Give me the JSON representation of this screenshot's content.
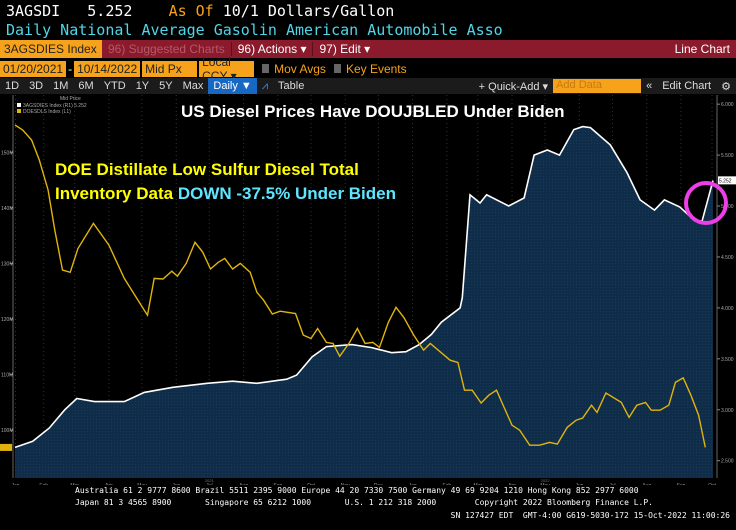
{
  "header": {
    "ticker": "3AGSDI",
    "last": "5.252",
    "as_of_label": "As Of",
    "as_of_rest": "10/1 Dollars/Gallon",
    "description": "Daily National Average Gasolin American Automobile Asso"
  },
  "toolbar": {
    "security": "3AGSDIES Index",
    "suggested": "96) Suggested Charts",
    "actions": "96) Actions ▾",
    "edit": "97) Edit ▾",
    "chart_type": "Line Chart"
  },
  "range": {
    "start": "01/20/2021",
    "dash": "-",
    "end": "10/14/2022",
    "price_type": "Mid Px",
    "currency": "Local CCY ▾",
    "mov_avgs": "Mov Avgs",
    "key_events": "Key Events"
  },
  "periods": [
    "1D",
    "3D",
    "1M",
    "6M",
    "YTD",
    "1Y",
    "5Y",
    "Max"
  ],
  "frequency": "Daily ▼",
  "table_label": "Table",
  "quick_add": "+ Quick-Add ▾",
  "add_data_placeholder": "Add Data",
  "collapse": "«",
  "edit_chart": "Edit Chart",
  "annotations": {
    "title": "US Diesel Prices Have DOUJBLED Under Biden",
    "line1": "DOE Distillate Low Sulfur Diesel Total",
    "line2a": "Inventory Data ",
    "line2b": "DOWN -37.5% Under Biden"
  },
  "footer": {
    "line1": "Australia 61 2 9777 8600 Brazil 5511 2395 9000 Europe 44 20 7330 7500 Germany 49 69 9204 1210 Hong Kong 852 2977 6000",
    "line2": "Japan 81 3 4565 8900       Singapore 65 6212 1000       U.S. 1 212 318 2000        Copyright 2022 Bloomberg Finance L.P.",
    "line3": "SN 127427 EDT  GMT-4:00 G619-5030-172 15-Oct-2022 11:00:26"
  },
  "colors": {
    "price": "#ffffff",
    "inventory": "#e0b40c",
    "area": "#0f2c48",
    "highlight": "#ee3ee8",
    "annotation_yellow": "#ffff00",
    "annotation_cyan": "#5fe6ff"
  },
  "chart_data": {
    "type": "line",
    "legend": {
      "title": "Mid Price",
      "entries": [
        "3AGSDIES Index (R1) 5.252",
        "DOESDLS Index (L1)"
      ]
    },
    "x_range": [
      "2021-01-20",
      "2022-10-14"
    ],
    "x_ticks": [
      "Jan",
      "Feb",
      "Mar",
      "Apr",
      "May",
      "Jun",
      "Jul",
      "Aug",
      "Sep",
      "Oct",
      "Nov",
      "Dec",
      "Jan",
      "Feb",
      "Mar",
      "Apr",
      "May",
      "Jun",
      "Jul",
      "Aug",
      "Sep",
      "Oct"
    ],
    "year_labels": [
      "2021",
      "2022"
    ],
    "right_axis": {
      "ylim": [
        2.33,
        6.09
      ],
      "ticks": [
        "2.500",
        "3.000",
        "3.500",
        "4.000",
        "4.500",
        "5.000",
        "5.500",
        "6.000"
      ],
      "last_tag": "5.252"
    },
    "left_axis": {
      "ylim": [
        91.4,
        160.3
      ],
      "ticks": [
        "100M",
        "110M",
        "120M",
        "130M",
        "140M",
        "150M"
      ]
    },
    "series": [
      {
        "name": "3AGSDIES Index",
        "axis": "right",
        "style": "area",
        "points": [
          [
            "2021-01-20",
            2.63
          ],
          [
            "2021-02-05",
            2.69
          ],
          [
            "2021-02-20",
            2.82
          ],
          [
            "2021-03-06",
            3.0
          ],
          [
            "2021-03-17",
            3.11
          ],
          [
            "2021-04-02",
            3.08
          ],
          [
            "2021-04-29",
            3.08
          ],
          [
            "2021-05-17",
            3.17
          ],
          [
            "2021-06-12",
            3.22
          ],
          [
            "2021-07-13",
            3.26
          ],
          [
            "2021-08-05",
            3.28
          ],
          [
            "2021-08-27",
            3.26
          ],
          [
            "2021-09-23",
            3.3
          ],
          [
            "2021-10-02",
            3.34
          ],
          [
            "2021-10-16",
            3.52
          ],
          [
            "2021-10-29",
            3.62
          ],
          [
            "2021-11-21",
            3.64
          ],
          [
            "2021-12-09",
            3.61
          ],
          [
            "2021-12-27",
            3.56
          ],
          [
            "2022-01-09",
            3.57
          ],
          [
            "2022-01-21",
            3.64
          ],
          [
            "2022-02-01",
            3.74
          ],
          [
            "2022-02-10",
            3.86
          ],
          [
            "2022-02-27",
            4.0
          ],
          [
            "2022-03-01",
            4.1
          ],
          [
            "2022-03-08",
            5.11
          ],
          [
            "2022-03-17",
            5.03
          ],
          [
            "2022-03-23",
            5.11
          ],
          [
            "2022-04-12",
            5.0
          ],
          [
            "2022-04-26",
            5.08
          ],
          [
            "2022-05-05",
            5.5
          ],
          [
            "2022-05-17",
            5.55
          ],
          [
            "2022-05-28",
            5.5
          ],
          [
            "2022-06-10",
            5.75
          ],
          [
            "2022-06-18",
            5.78
          ],
          [
            "2022-06-25",
            5.77
          ],
          [
            "2022-07-13",
            5.6
          ],
          [
            "2022-07-28",
            5.33
          ],
          [
            "2022-08-09",
            5.06
          ],
          [
            "2022-08-22",
            4.96
          ],
          [
            "2022-08-31",
            5.06
          ],
          [
            "2022-09-14",
            4.99
          ],
          [
            "2022-09-27",
            4.86
          ],
          [
            "2022-10-04",
            4.85
          ],
          [
            "2022-10-14",
            5.25
          ]
        ]
      },
      {
        "name": "DOESDLS Index",
        "axis": "left",
        "style": "line",
        "points": [
          [
            "2021-01-20",
            154.9
          ],
          [
            "2021-01-27",
            154.0
          ],
          [
            "2021-02-04",
            152.2
          ],
          [
            "2021-02-11",
            148.6
          ],
          [
            "2021-02-19",
            143.2
          ],
          [
            "2021-02-25",
            136.0
          ],
          [
            "2021-03-04",
            128.8
          ],
          [
            "2021-03-11",
            128.4
          ],
          [
            "2021-03-18",
            132.7
          ],
          [
            "2021-04-01",
            137.2
          ],
          [
            "2021-04-15",
            133.3
          ],
          [
            "2021-04-29",
            127.3
          ],
          [
            "2021-05-17",
            121.6
          ],
          [
            "2021-05-20",
            120.7
          ],
          [
            "2021-05-26",
            127.3
          ],
          [
            "2021-06-03",
            127.2
          ],
          [
            "2021-06-11",
            128.6
          ],
          [
            "2021-06-16",
            127.7
          ],
          [
            "2021-06-24",
            130.0
          ],
          [
            "2021-07-02",
            133.8
          ],
          [
            "2021-07-09",
            132.0
          ],
          [
            "2021-07-16",
            129.0
          ],
          [
            "2021-07-23",
            130.2
          ],
          [
            "2021-07-29",
            130.9
          ],
          [
            "2021-08-05",
            129.0
          ],
          [
            "2021-08-12",
            130.0
          ],
          [
            "2021-08-21",
            128.4
          ],
          [
            "2021-08-27",
            124.8
          ],
          [
            "2021-09-02",
            123.4
          ],
          [
            "2021-09-10",
            120.9
          ],
          [
            "2021-09-17",
            121.4
          ],
          [
            "2021-10-01",
            121.0
          ],
          [
            "2021-10-08",
            117.1
          ],
          [
            "2021-10-15",
            116.5
          ],
          [
            "2021-10-21",
            118.3
          ],
          [
            "2021-10-29",
            115.8
          ],
          [
            "2021-11-04",
            115.6
          ],
          [
            "2021-11-10",
            113.3
          ],
          [
            "2021-11-19",
            115.8
          ],
          [
            "2021-11-26",
            118.3
          ],
          [
            "2021-12-03",
            115.6
          ],
          [
            "2021-12-10",
            115.8
          ],
          [
            "2021-12-16",
            114.9
          ],
          [
            "2021-12-24",
            119.4
          ],
          [
            "2021-12-31",
            122.1
          ],
          [
            "2022-01-07",
            120.3
          ],
          [
            "2022-01-16",
            117.1
          ],
          [
            "2022-01-25",
            114.4
          ],
          [
            "2022-01-31",
            115.6
          ],
          [
            "2022-02-18",
            112.6
          ],
          [
            "2022-02-25",
            112.2
          ],
          [
            "2022-03-03",
            107.2
          ],
          [
            "2022-03-10",
            107.2
          ],
          [
            "2022-03-18",
            104.9
          ],
          [
            "2022-03-25",
            106.3
          ],
          [
            "2022-04-01",
            107.2
          ],
          [
            "2022-04-15",
            100.9
          ],
          [
            "2022-04-22",
            100.0
          ],
          [
            "2022-05-01",
            97.3
          ],
          [
            "2022-05-10",
            97.3
          ],
          [
            "2022-05-19",
            97.8
          ],
          [
            "2022-05-26",
            97.5
          ],
          [
            "2022-06-04",
            100.5
          ],
          [
            "2022-06-12",
            101.8
          ],
          [
            "2022-06-18",
            102.2
          ],
          [
            "2022-06-26",
            104.5
          ],
          [
            "2022-07-01",
            103.2
          ],
          [
            "2022-07-09",
            106.7
          ],
          [
            "2022-07-23",
            105.0
          ],
          [
            "2022-07-30",
            102.3
          ],
          [
            "2022-08-06",
            104.5
          ],
          [
            "2022-08-14",
            105.0
          ],
          [
            "2022-08-19",
            103.6
          ],
          [
            "2022-08-27",
            103.6
          ],
          [
            "2022-09-04",
            104.5
          ],
          [
            "2022-09-10",
            108.6
          ],
          [
            "2022-09-17",
            109.4
          ],
          [
            "2022-09-24",
            106.3
          ],
          [
            "2022-10-01",
            102.7
          ],
          [
            "2022-10-07",
            96.9
          ]
        ]
      }
    ]
  }
}
